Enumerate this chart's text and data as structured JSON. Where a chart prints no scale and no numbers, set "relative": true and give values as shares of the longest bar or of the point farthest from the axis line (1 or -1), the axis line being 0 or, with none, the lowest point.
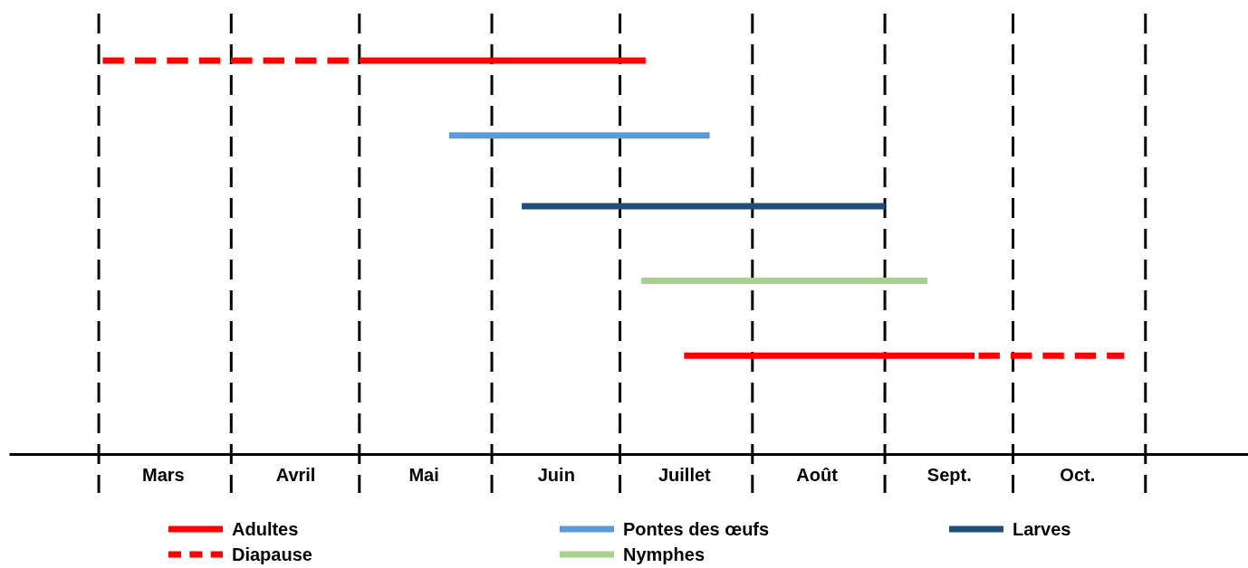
{
  "chart_data": {
    "type": "line",
    "relative": true,
    "xlim": [
      "--02-09",
      "--11-25"
    ],
    "xticks": [
      {
        "value": "--03-16",
        "label": "Mars"
      },
      {
        "value": "--04-16",
        "label": "Avril"
      },
      {
        "value": "--05-16",
        "label": "Mai"
      },
      {
        "value": "--06-16",
        "label": "Juin"
      },
      {
        "value": "--07-16",
        "label": "Juillet"
      },
      {
        "value": "--08-16",
        "label": "Août"
      },
      {
        "value": "--09-16",
        "label": "Sept."
      },
      {
        "value": "--10-16",
        "label": "Oct."
      }
    ],
    "series": [
      {
        "name": "Adultes",
        "color": "#ff0000",
        "line_style": "solid",
        "x": [
          "--05-01",
          "--07-07",
          null,
          "--07-16",
          "--09-22"
        ],
        "values": [
          1,
          1,
          null,
          0.25,
          0.25
        ]
      },
      {
        "name": "Pontes des œufs",
        "color": "#5b9bd5",
        "line_style": "solid",
        "x": [
          "--05-22",
          "--07-22"
        ],
        "values": [
          0.81,
          0.81
        ]
      },
      {
        "name": "Larves",
        "color": "#1f4e79",
        "line_style": "solid",
        "x": [
          "--06-08",
          "--09-01"
        ],
        "values": [
          0.63,
          0.63
        ]
      },
      {
        "name": "Diapause",
        "color": "#ff0000",
        "line_style": "dashed",
        "x": [
          "--03-01",
          "--05-01",
          null,
          "--09-22",
          "--10-27"
        ],
        "values": [
          1,
          1,
          null,
          0.25,
          0.25
        ]
      },
      {
        "name": "Nymphes",
        "color": "#a9d18e",
        "line_style": "solid",
        "x": [
          "--07-06",
          "--09-11"
        ],
        "values": [
          0.44,
          0.44
        ]
      }
    ],
    "ref_lines": [
      {
        "axis": "x",
        "value": "--03-01",
        "line_style": "dashed",
        "color": "#000000"
      },
      {
        "axis": "x",
        "value": "--04-01",
        "line_style": "dashed",
        "color": "#000000"
      },
      {
        "axis": "x",
        "value": "--05-01",
        "line_style": "dashed",
        "color": "#000000"
      },
      {
        "axis": "x",
        "value": "--06-01",
        "line_style": "dashed",
        "color": "#000000"
      },
      {
        "axis": "x",
        "value": "--07-01",
        "line_style": "dashed",
        "color": "#000000"
      },
      {
        "axis": "x",
        "value": "--08-01",
        "line_style": "dashed",
        "color": "#000000"
      },
      {
        "axis": "x",
        "value": "--09-01",
        "line_style": "dashed",
        "color": "#000000"
      },
      {
        "axis": "x",
        "value": "--10-01",
        "line_style": "dashed",
        "color": "#000000"
      },
      {
        "axis": "x",
        "value": "--11-01",
        "line_style": "dashed",
        "color": "#000000"
      }
    ],
    "legend": "bottom"
  }
}
